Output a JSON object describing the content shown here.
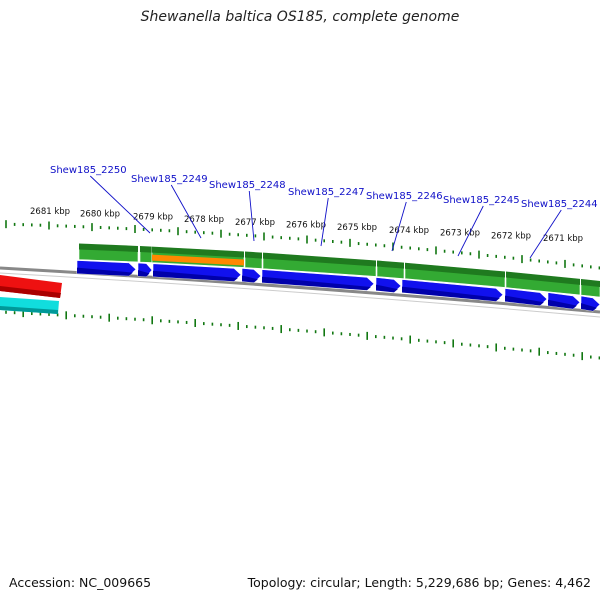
{
  "title": "Shewanella baltica OS185, complete genome",
  "footer": {
    "accession": "Accession: NC_009665",
    "summary": "Topology: circular; Length: 5,229,686 bp; Genes: 4,462"
  },
  "colors": {
    "cds_forward": "#1111ee",
    "gene_track": "#33aa33",
    "gene_track_dark": "#1f7a1f",
    "highlight_orange": "#ff8800",
    "backbone": "#888888",
    "tick": "#117711",
    "label_blue": "#1010c8",
    "other_red": "#ee1111",
    "other_cyan": "#11dddd"
  },
  "position_ticks": [
    "2681 kbp",
    "2680 kbp",
    "2679 kbp",
    "2678 kbp",
    "2677 kbp",
    "2676 kbp",
    "2675 kbp",
    "2674 kbp",
    "2673 kbp",
    "2672 kbp",
    "2671 kbp"
  ],
  "gene_labels": [
    "Shew185_2250",
    "Shew185_2249",
    "Shew185_2248",
    "Shew185_2247",
    "Shew185_2246",
    "Shew185_2245",
    "Shew185_2244"
  ]
}
